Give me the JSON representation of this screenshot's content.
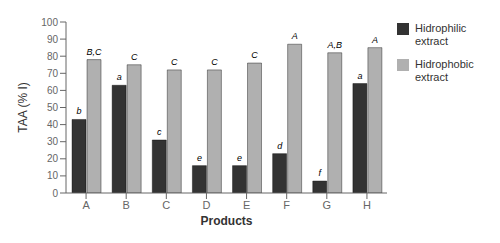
{
  "chart_data": {
    "type": "bar",
    "xlabel": "Products",
    "ylabel": "TAA (% I)",
    "categories": [
      "A",
      "B",
      "C",
      "D",
      "E",
      "F",
      "G",
      "H"
    ],
    "series": [
      {
        "name": "Hidrophilic\nextract",
        "color": "#333333",
        "values": [
          43,
          63,
          31,
          16,
          16,
          23,
          7,
          64
        ],
        "labels": [
          "b",
          "a",
          "c",
          "e",
          "e",
          "d",
          "f",
          "a"
        ]
      },
      {
        "name": "Hidrophobic\nextract",
        "color": "#b0b0b0",
        "values": [
          78,
          75,
          72,
          72,
          76,
          87,
          82,
          85
        ],
        "labels": [
          "B,C",
          "C",
          "C",
          "C",
          "C",
          "A",
          "A,B",
          "A"
        ]
      }
    ],
    "ylim": [
      0,
      100
    ],
    "yticks": [
      0,
      10,
      20,
      30,
      40,
      50,
      60,
      70,
      80,
      90,
      100
    ],
    "grid": false,
    "legend": "right"
  }
}
